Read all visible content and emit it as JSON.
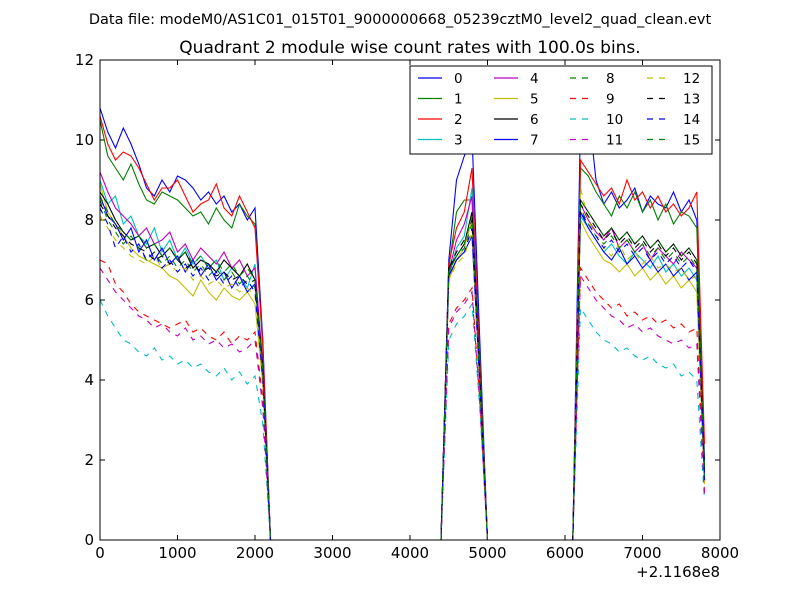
{
  "figure": {
    "suptitle": "Data file: modeM0/AS1C01_015T01_9000000668_05239cztM0_level2_quad_clean.evt"
  },
  "chart_data": {
    "type": "line",
    "title": "Quadrant 2 module wise count rates with 100.0s bins.",
    "xlabel": "",
    "ylabel": "",
    "x_offset_label": "+2.1168e8",
    "xlim": [
      0,
      8000
    ],
    "ylim": [
      0,
      12
    ],
    "xticks": [
      0,
      1000,
      2000,
      3000,
      4000,
      5000,
      6000,
      7000,
      8000
    ],
    "xtick_labels": [
      "0",
      "1000",
      "2000",
      "3000",
      "4000",
      "5000",
      "6000",
      "7000",
      "8000"
    ],
    "yticks": [
      0,
      2,
      4,
      6,
      8,
      10,
      12
    ],
    "ytick_labels": [
      "0",
      "2",
      "4",
      "6",
      "8",
      "10",
      "12"
    ],
    "grid": false,
    "legend_position": "top-right",
    "x": [
      0,
      100,
      200,
      300,
      400,
      500,
      600,
      700,
      800,
      900,
      1000,
      1100,
      1200,
      1300,
      1400,
      1500,
      1600,
      1700,
      1800,
      1900,
      2000,
      2100,
      2200,
      2300,
      2400,
      4400,
      4500,
      4600,
      4700,
      4800,
      4900,
      5000,
      5100,
      6100,
      6200,
      6300,
      6400,
      6500,
      6600,
      6700,
      6800,
      6900,
      7000,
      7100,
      7200,
      7300,
      7400,
      7500,
      7600,
      7700,
      7800
    ],
    "series": [
      {
        "name": "0",
        "color": "#0000ff",
        "linestyle": "solid",
        "values": [
          10.8,
          10.2,
          9.8,
          10.3,
          9.9,
          9.4,
          8.8,
          8.6,
          9.0,
          8.7,
          9.1,
          9.0,
          8.8,
          8.5,
          8.7,
          8.4,
          8.6,
          8.2,
          8.4,
          8.0,
          8.3,
          5.0,
          0,
          0,
          0,
          0,
          7.0,
          9.0,
          9.6,
          10.1,
          5.0,
          0,
          0,
          0,
          10.5,
          10.8,
          9.0,
          8.4,
          8.7,
          8.3,
          8.5,
          8.8,
          8.2,
          8.6,
          8.4,
          8.3,
          8.7,
          8.2,
          8.5,
          8.0,
          2.0
        ]
      },
      {
        "name": "1",
        "color": "#008000",
        "linestyle": "solid",
        "values": [
          10.5,
          9.6,
          9.3,
          9.0,
          9.4,
          8.9,
          8.5,
          8.4,
          8.7,
          8.6,
          8.5,
          8.3,
          8.1,
          8.2,
          7.9,
          8.3,
          8.0,
          7.8,
          8.4,
          8.1,
          7.9,
          4.8,
          0,
          0,
          0,
          0,
          6.8,
          8.2,
          8.5,
          8.5,
          4.6,
          0,
          0,
          0,
          9.3,
          9.1,
          8.7,
          8.4,
          8.1,
          8.6,
          8.3,
          8.7,
          8.2,
          8.5,
          8.0,
          8.4,
          7.9,
          8.2,
          8.1,
          7.8,
          1.8
        ]
      },
      {
        "name": "2",
        "color": "#ff0000",
        "linestyle": "solid",
        "values": [
          10.6,
          9.9,
          9.5,
          9.7,
          9.6,
          9.3,
          8.9,
          8.5,
          8.8,
          8.8,
          9.0,
          8.6,
          8.2,
          8.4,
          8.5,
          8.9,
          8.3,
          8.1,
          8.6,
          8.2,
          7.8,
          4.9,
          0,
          0,
          0,
          0,
          6.9,
          7.8,
          8.2,
          9.3,
          4.4,
          0,
          0,
          0,
          9.5,
          9.2,
          8.9,
          8.6,
          8.8,
          8.4,
          9.0,
          8.5,
          8.7,
          8.3,
          8.6,
          8.2,
          8.4,
          8.1,
          8.3,
          8.7,
          2.4
        ]
      },
      {
        "name": "3",
        "color": "#00bfbf",
        "linestyle": "solid",
        "values": [
          9.0,
          8.4,
          8.6,
          7.9,
          8.1,
          7.6,
          7.4,
          7.8,
          7.2,
          7.5,
          7.0,
          7.3,
          6.9,
          7.1,
          6.8,
          7.0,
          6.5,
          6.8,
          6.6,
          6.3,
          6.9,
          4.1,
          0,
          0,
          0,
          0,
          6.6,
          7.3,
          7.6,
          8.8,
          4.0,
          0,
          0,
          0,
          8.1,
          7.8,
          7.5,
          7.2,
          7.4,
          7.1,
          6.9,
          7.2,
          7.0,
          6.8,
          7.1,
          6.7,
          6.9,
          6.6,
          6.8,
          6.5,
          1.5
        ]
      },
      {
        "name": "4",
        "color": "#bf00bf",
        "linestyle": "solid",
        "values": [
          9.2,
          8.7,
          8.3,
          8.1,
          7.9,
          7.6,
          7.8,
          7.4,
          7.5,
          7.7,
          7.2,
          7.4,
          7.0,
          7.3,
          7.1,
          6.9,
          7.2,
          6.8,
          7.0,
          6.6,
          6.8,
          4.4,
          0,
          0,
          0,
          0,
          6.7,
          7.5,
          7.9,
          8.6,
          4.2,
          0,
          0,
          0,
          8.4,
          8.0,
          7.7,
          7.5,
          7.8,
          7.3,
          7.5,
          7.2,
          7.4,
          7.0,
          7.3,
          7.1,
          6.9,
          7.2,
          7.0,
          6.8,
          1.6
        ]
      },
      {
        "name": "5",
        "color": "#bfbf00",
        "linestyle": "solid",
        "values": [
          8.9,
          8.2,
          7.9,
          7.6,
          7.3,
          7.1,
          7.0,
          6.9,
          6.8,
          6.6,
          6.5,
          6.3,
          6.1,
          6.5,
          6.2,
          6.0,
          6.3,
          6.1,
          6.0,
          6.2,
          5.9,
          3.9,
          0,
          0,
          0,
          0,
          6.5,
          7.0,
          7.3,
          8.0,
          4.0,
          0,
          0,
          0,
          8.0,
          7.6,
          7.3,
          7.0,
          6.9,
          6.7,
          6.9,
          6.6,
          6.8,
          6.5,
          6.7,
          6.4,
          6.6,
          6.3,
          6.5,
          6.2,
          1.4
        ]
      },
      {
        "name": "6",
        "color": "#000000",
        "linestyle": "solid",
        "values": [
          8.7,
          8.4,
          8.0,
          7.7,
          7.5,
          7.6,
          7.3,
          7.4,
          7.1,
          7.3,
          7.0,
          7.2,
          6.8,
          7.0,
          6.9,
          6.7,
          7.0,
          6.8,
          6.6,
          6.9,
          6.5,
          4.3,
          0,
          0,
          0,
          0,
          6.8,
          7.1,
          7.4,
          8.2,
          4.1,
          0,
          0,
          0,
          8.5,
          8.2,
          7.9,
          7.6,
          7.8,
          7.5,
          7.7,
          7.4,
          7.6,
          7.3,
          7.5,
          7.2,
          7.4,
          7.1,
          7.3,
          7.0,
          1.7
        ]
      },
      {
        "name": "7",
        "color": "#0000ff",
        "linestyle": "solid",
        "values": [
          8.6,
          8.1,
          7.9,
          7.5,
          7.8,
          7.2,
          7.5,
          7.0,
          7.3,
          6.9,
          7.1,
          6.7,
          7.0,
          6.6,
          6.9,
          6.5,
          6.7,
          6.3,
          6.6,
          6.2,
          6.4,
          4.2,
          0,
          0,
          0,
          0,
          6.6,
          7.0,
          7.2,
          7.6,
          3.9,
          0,
          0,
          0,
          8.2,
          7.8,
          7.5,
          7.2,
          7.0,
          7.3,
          6.9,
          7.1,
          6.8,
          7.0,
          6.7,
          6.9,
          6.6,
          6.8,
          6.5,
          6.7,
          1.5
        ]
      },
      {
        "name": "8",
        "color": "#008000",
        "linestyle": "dashed",
        "values": [
          8.5,
          8.0,
          7.7,
          7.4,
          7.6,
          7.3,
          7.0,
          7.2,
          6.9,
          7.1,
          6.8,
          7.0,
          6.7,
          6.9,
          6.6,
          6.8,
          6.5,
          6.7,
          6.4,
          6.6,
          6.3,
          4.1,
          0,
          0,
          0,
          0,
          6.7,
          7.1,
          7.3,
          7.9,
          4.0,
          0,
          0,
          0,
          8.3,
          7.9,
          7.6,
          7.4,
          7.6,
          7.3,
          7.5,
          7.2,
          7.4,
          7.1,
          7.3,
          7.0,
          7.2,
          6.9,
          7.1,
          6.8,
          1.6
        ]
      },
      {
        "name": "9",
        "color": "#ff0000",
        "linestyle": "dashed",
        "values": [
          7.0,
          6.9,
          6.4,
          6.2,
          5.9,
          5.7,
          5.6,
          5.5,
          5.4,
          5.3,
          5.4,
          5.5,
          5.2,
          5.3,
          5.1,
          5.0,
          5.2,
          4.9,
          5.1,
          5.0,
          5.2,
          3.5,
          0,
          0,
          0,
          0,
          5.4,
          5.8,
          6.0,
          6.3,
          3.5,
          0,
          0,
          0,
          6.8,
          6.5,
          6.2,
          6.0,
          5.8,
          5.9,
          5.6,
          5.7,
          5.5,
          5.6,
          5.4,
          5.5,
          5.3,
          5.4,
          5.2,
          5.3,
          1.2
        ]
      },
      {
        "name": "10",
        "color": "#00bfbf",
        "linestyle": "dashed",
        "values": [
          6.0,
          5.6,
          5.3,
          5.0,
          4.9,
          4.7,
          4.6,
          4.8,
          4.5,
          4.6,
          4.4,
          4.5,
          4.3,
          4.4,
          4.2,
          4.1,
          4.3,
          4.0,
          4.2,
          3.9,
          4.1,
          2.9,
          0,
          0,
          0,
          0,
          5.0,
          5.4,
          5.6,
          5.9,
          3.3,
          0,
          0,
          0,
          5.8,
          5.5,
          5.2,
          5.0,
          4.9,
          4.7,
          4.8,
          4.6,
          4.5,
          4.6,
          4.4,
          4.3,
          4.4,
          4.1,
          4.2,
          4.0,
          1.0
        ]
      },
      {
        "name": "11",
        "color": "#bf00bf",
        "linestyle": "dashed",
        "values": [
          6.8,
          6.5,
          6.2,
          6.0,
          5.8,
          5.6,
          5.5,
          5.3,
          5.4,
          5.2,
          5.1,
          5.3,
          5.0,
          5.1,
          4.9,
          5.0,
          4.8,
          4.9,
          4.7,
          4.8,
          5.0,
          3.3,
          0,
          0,
          0,
          0,
          5.3,
          5.7,
          5.9,
          6.2,
          3.4,
          0,
          0,
          0,
          6.6,
          6.3,
          6.0,
          5.8,
          5.6,
          5.5,
          5.3,
          5.4,
          5.2,
          5.3,
          5.1,
          5.0,
          4.9,
          5.0,
          4.8,
          4.9,
          1.1
        ]
      },
      {
        "name": "12",
        "color": "#bfbf00",
        "linestyle": "dashed",
        "values": [
          8.1,
          7.8,
          7.5,
          7.3,
          7.1,
          7.0,
          6.9,
          7.1,
          6.8,
          6.9,
          6.7,
          6.8,
          6.5,
          6.6,
          6.4,
          6.5,
          6.3,
          6.4,
          6.2,
          6.3,
          6.1,
          4.0,
          0,
          0,
          0,
          0,
          6.5,
          6.9,
          7.1,
          7.7,
          3.9,
          0,
          0,
          0,
          8.8,
          8.0,
          7.6,
          7.3,
          7.1,
          7.4,
          7.0,
          7.2,
          6.9,
          7.1,
          6.8,
          6.9,
          6.7,
          6.8,
          6.5,
          6.6,
          1.4
        ]
      },
      {
        "name": "13",
        "color": "#000000",
        "linestyle": "dashed",
        "values": [
          8.4,
          8.1,
          7.8,
          7.6,
          7.4,
          7.3,
          7.2,
          7.0,
          7.1,
          6.9,
          7.0,
          6.8,
          6.9,
          6.7,
          6.8,
          6.6,
          6.7,
          6.5,
          6.6,
          6.4,
          6.5,
          4.2,
          0,
          0,
          0,
          0,
          6.8,
          7.2,
          7.5,
          8.0,
          4.1,
          0,
          0,
          0,
          8.4,
          8.1,
          7.8,
          7.5,
          7.7,
          7.4,
          7.6,
          7.3,
          7.5,
          7.2,
          7.4,
          7.1,
          7.3,
          7.0,
          7.2,
          6.9,
          1.7
        ]
      },
      {
        "name": "14",
        "color": "#0000ff",
        "linestyle": "dashed",
        "values": [
          8.3,
          7.9,
          7.3,
          7.6,
          7.2,
          7.4,
          7.0,
          7.2,
          6.8,
          7.0,
          6.7,
          6.9,
          6.6,
          6.8,
          6.5,
          6.7,
          6.4,
          6.6,
          6.3,
          6.5,
          6.2,
          4.0,
          0,
          0,
          0,
          0,
          6.6,
          7.0,
          7.2,
          7.8,
          3.9,
          0,
          0,
          0,
          8.2,
          7.9,
          7.6,
          7.3,
          7.5,
          7.2,
          7.4,
          7.1,
          7.3,
          7.0,
          7.2,
          6.9,
          7.1,
          6.8,
          7.0,
          6.7,
          1.5
        ]
      },
      {
        "name": "15",
        "color": "#008000",
        "linestyle": "dashed",
        "values": [
          8.6,
          8.2,
          7.9,
          7.7,
          7.5,
          7.6,
          7.3,
          7.4,
          7.1,
          7.3,
          7.0,
          7.2,
          6.9,
          7.1,
          6.8,
          7.0,
          6.7,
          6.9,
          6.6,
          6.8,
          6.5,
          4.2,
          0,
          0,
          0,
          0,
          6.7,
          7.1,
          7.4,
          8.1,
          4.0,
          0,
          0,
          0,
          8.5,
          8.2,
          7.9,
          7.6,
          7.8,
          7.5,
          7.7,
          7.4,
          7.6,
          7.3,
          7.5,
          7.2,
          7.4,
          7.1,
          7.3,
          7.0,
          1.6
        ]
      }
    ]
  }
}
